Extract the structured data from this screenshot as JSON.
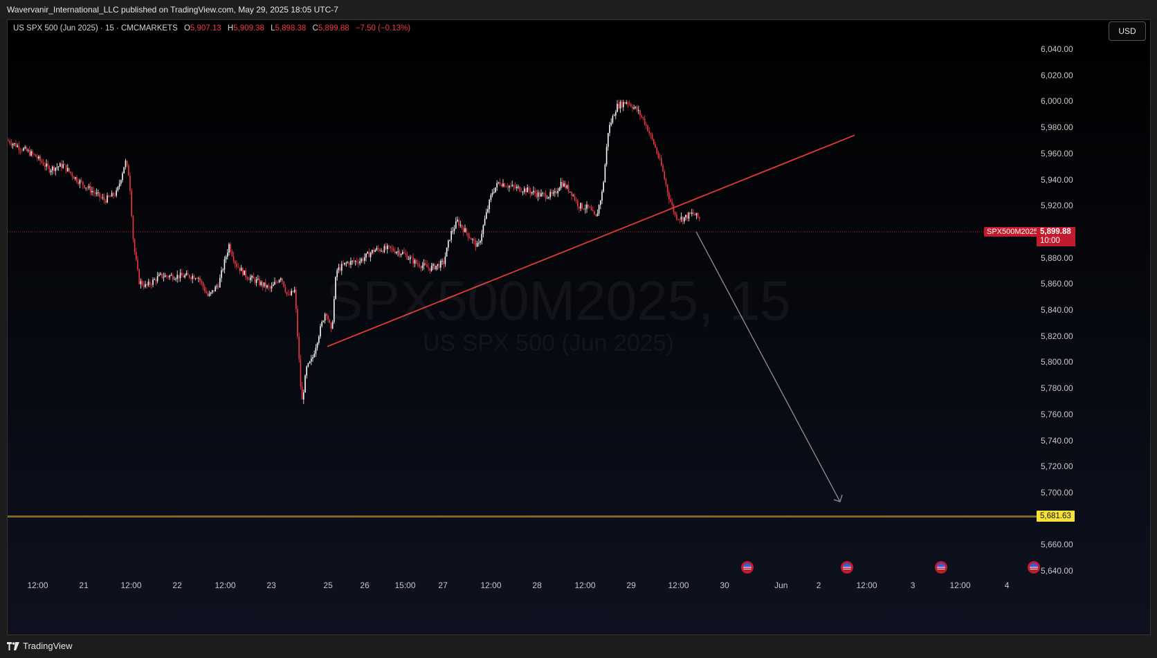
{
  "header": {
    "publisher_text": "Wavervanir_International_LLC published on TradingView.com, May 29, 2025 18:05 UTC-7"
  },
  "legend": {
    "symbol": "US SPX 500 (Jun 2025) · 15 · CMCMARKETS",
    "o_label": "O",
    "o_value": "5,907.13",
    "h_label": "H",
    "h_value": "5,909.38",
    "l_label": "L",
    "l_value": "5,898.38",
    "c_label": "C",
    "c_value": "5,899.88",
    "change": "−7.50 (−0.13%)"
  },
  "currency_button": "USD",
  "watermark": {
    "symbol": "SPX500M2025, 15",
    "name": "US SPX 500 (Jun 2025)"
  },
  "price_axis_labels": [
    "6,040.00",
    "6,020.00",
    "6,000.00",
    "5,980.00",
    "5,960.00",
    "5,940.00",
    "5,920.00",
    "5,880.00",
    "5,860.00",
    "5,840.00",
    "5,820.00",
    "5,800.00",
    "5,780.00",
    "5,760.00",
    "5,740.00",
    "5,720.00",
    "5,700.00",
    "5,660.00",
    "5,640.00"
  ],
  "time_axis_labels": [
    "12:00",
    "21",
    "12:00",
    "22",
    "12:00",
    "23",
    "25",
    "26",
    "15:00",
    "27",
    "12:00",
    "28",
    "12:00",
    "29",
    "12:00",
    "30",
    "Jun",
    "2",
    "12:00",
    "3",
    "12:00",
    "4"
  ],
  "current_price": {
    "symbol_tag": "SPX500M2025",
    "price": "5,899.88",
    "countdown": "10:00"
  },
  "level": {
    "price": "5,681.63",
    "color": "#f7e338"
  },
  "colors": {
    "up": "#ffffff",
    "down": "#f23645",
    "trendline": "#e53935",
    "arrow": "#8a8a8a",
    "level_line": "#7d6a1e"
  },
  "footer": {
    "brand": "TradingView"
  },
  "chart_data": {
    "type": "candlestick",
    "title": "US SPX 500 (Jun 2025) · 15 · CMCMARKETS",
    "ylim": [
      5630,
      6050
    ],
    "y_ticks": [
      6040,
      6020,
      6000,
      5980,
      5960,
      5940,
      5920,
      5880,
      5860,
      5840,
      5820,
      5800,
      5780,
      5760,
      5740,
      5720,
      5700,
      5660,
      5640
    ],
    "x_labels": [
      "12:00",
      "21",
      "12:00",
      "22",
      "12:00",
      "23",
      "25",
      "26",
      "15:00",
      "27",
      "12:00",
      "28",
      "12:00",
      "29",
      "12:00",
      "30",
      "Jun",
      "2",
      "12:00",
      "3",
      "12:00",
      "4"
    ],
    "price_path": [
      [
        0,
        5970
      ],
      [
        20,
        5964
      ],
      [
        40,
        5958
      ],
      [
        60,
        5948
      ],
      [
        80,
        5951
      ],
      [
        100,
        5940
      ],
      [
        120,
        5932
      ],
      [
        140,
        5924
      ],
      [
        158,
        5930
      ],
      [
        170,
        5954
      ],
      [
        176,
        5942
      ],
      [
        182,
        5890
      ],
      [
        190,
        5862
      ],
      [
        200,
        5858
      ],
      [
        220,
        5866
      ],
      [
        250,
        5866
      ],
      [
        275,
        5866
      ],
      [
        290,
        5850
      ],
      [
        305,
        5860
      ],
      [
        320,
        5890
      ],
      [
        330,
        5875
      ],
      [
        345,
        5866
      ],
      [
        360,
        5862
      ],
      [
        380,
        5856
      ],
      [
        395,
        5866
      ],
      [
        405,
        5850
      ],
      [
        415,
        5855
      ],
      [
        425,
        5768
      ],
      [
        432,
        5795
      ],
      [
        440,
        5802
      ],
      [
        450,
        5822
      ],
      [
        460,
        5840
      ],
      [
        468,
        5822
      ],
      [
        475,
        5870
      ],
      [
        490,
        5876
      ],
      [
        510,
        5878
      ],
      [
        530,
        5886
      ],
      [
        550,
        5887
      ],
      [
        570,
        5884
      ],
      [
        590,
        5876
      ],
      [
        610,
        5872
      ],
      [
        630,
        5876
      ],
      [
        640,
        5898
      ],
      [
        650,
        5908
      ],
      [
        665,
        5898
      ],
      [
        680,
        5888
      ],
      [
        690,
        5910
      ],
      [
        700,
        5930
      ],
      [
        710,
        5938
      ],
      [
        730,
        5934
      ],
      [
        750,
        5932
      ],
      [
        770,
        5928
      ],
      [
        790,
        5928
      ],
      [
        800,
        5938
      ],
      [
        815,
        5930
      ],
      [
        825,
        5920
      ],
      [
        840,
        5918
      ],
      [
        850,
        5910
      ],
      [
        860,
        5932
      ],
      [
        868,
        5978
      ],
      [
        880,
        5996
      ],
      [
        895,
        6000
      ],
      [
        910,
        5993
      ],
      [
        920,
        5985
      ],
      [
        935,
        5966
      ],
      [
        945,
        5950
      ],
      [
        955,
        5928
      ],
      [
        965,
        5912
      ],
      [
        975,
        5910
      ],
      [
        990,
        5914
      ],
      [
        1000,
        5910
      ],
      [
        1010,
        5900
      ]
    ],
    "trendline": {
      "from": {
        "x": "25",
        "y": 5812
      },
      "to": {
        "x": "beyond Jun",
        "y": 5974
      }
    },
    "projection_arrow": {
      "from_y": 5900,
      "to_y": 5693
    },
    "horizontal_level": 5681.63,
    "last_price": 5899.88
  }
}
